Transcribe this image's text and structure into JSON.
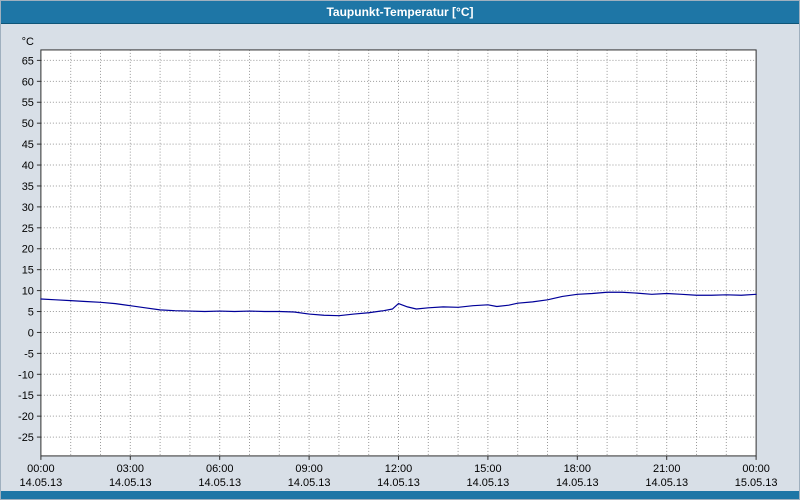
{
  "window": {
    "title": "Taupunkt-Temperatur [°C]"
  },
  "colors": {
    "titlebar_bg": "#1e76a6",
    "page_bg": "#d8dfe7",
    "plot_bg": "#ffffff",
    "grid": "#9a9a9a",
    "frame": "#303030",
    "labels": "#000000",
    "line": "#000099",
    "title_text": "#ffffff"
  },
  "chart_data": {
    "type": "line",
    "title": "Taupunkt-Temperatur [°C]",
    "xlabel": "",
    "ylabel": "°C",
    "ylim": [
      -29.5,
      67.5
    ],
    "xlim": [
      0,
      24
    ],
    "ytick_step": 5,
    "yticks": [
      65,
      60,
      55,
      50,
      45,
      40,
      35,
      30,
      25,
      20,
      15,
      10,
      5,
      0,
      -5,
      -10,
      -15,
      -20,
      -25
    ],
    "xticks": [
      {
        "hour": 0,
        "time": "00:00",
        "date": "14.05.13"
      },
      {
        "hour": 3,
        "time": "03:00",
        "date": "14.05.13"
      },
      {
        "hour": 6,
        "time": "06:00",
        "date": "14.05.13"
      },
      {
        "hour": 9,
        "time": "09:00",
        "date": "14.05.13"
      },
      {
        "hour": 12,
        "time": "12:00",
        "date": "14.05.13"
      },
      {
        "hour": 15,
        "time": "15:00",
        "date": "14.05.13"
      },
      {
        "hour": 18,
        "time": "18:00",
        "date": "14.05.13"
      },
      {
        "hour": 21,
        "time": "21:00",
        "date": "14.05.13"
      },
      {
        "hour": 24,
        "time": "00:00",
        "date": "15.05.13"
      }
    ],
    "grid": "dotted; horizontal every 5 °C, vertical every hour",
    "legend": "none",
    "series": [
      {
        "name": "Taupunkt-Temperatur",
        "color": "#000099",
        "points": [
          [
            0.0,
            8.0
          ],
          [
            0.5,
            7.8
          ],
          [
            1.0,
            7.6
          ],
          [
            1.5,
            7.4
          ],
          [
            2.0,
            7.2
          ],
          [
            2.5,
            6.9
          ],
          [
            3.0,
            6.4
          ],
          [
            3.5,
            5.9
          ],
          [
            4.0,
            5.4
          ],
          [
            4.5,
            5.2
          ],
          [
            5.0,
            5.1
          ],
          [
            5.5,
            5.0
          ],
          [
            6.0,
            5.1
          ],
          [
            6.5,
            5.0
          ],
          [
            7.0,
            5.1
          ],
          [
            7.5,
            5.0
          ],
          [
            8.0,
            5.0
          ],
          [
            8.5,
            4.9
          ],
          [
            9.0,
            4.4
          ],
          [
            9.5,
            4.1
          ],
          [
            10.0,
            4.0
          ],
          [
            10.5,
            4.4
          ],
          [
            11.0,
            4.7
          ],
          [
            11.5,
            5.2
          ],
          [
            11.8,
            5.6
          ],
          [
            12.0,
            6.9
          ],
          [
            12.3,
            6.1
          ],
          [
            12.6,
            5.6
          ],
          [
            13.0,
            5.9
          ],
          [
            13.5,
            6.1
          ],
          [
            14.0,
            6.0
          ],
          [
            14.5,
            6.4
          ],
          [
            15.0,
            6.6
          ],
          [
            15.3,
            6.2
          ],
          [
            15.7,
            6.5
          ],
          [
            16.0,
            7.0
          ],
          [
            16.5,
            7.3
          ],
          [
            17.0,
            7.8
          ],
          [
            17.5,
            8.6
          ],
          [
            18.0,
            9.1
          ],
          [
            18.5,
            9.3
          ],
          [
            19.0,
            9.6
          ],
          [
            19.5,
            9.6
          ],
          [
            20.0,
            9.4
          ],
          [
            20.5,
            9.1
          ],
          [
            21.0,
            9.3
          ],
          [
            21.5,
            9.1
          ],
          [
            22.0,
            8.9
          ],
          [
            22.5,
            8.9
          ],
          [
            23.0,
            9.0
          ],
          [
            23.5,
            8.9
          ],
          [
            24.0,
            9.1
          ]
        ]
      }
    ]
  }
}
